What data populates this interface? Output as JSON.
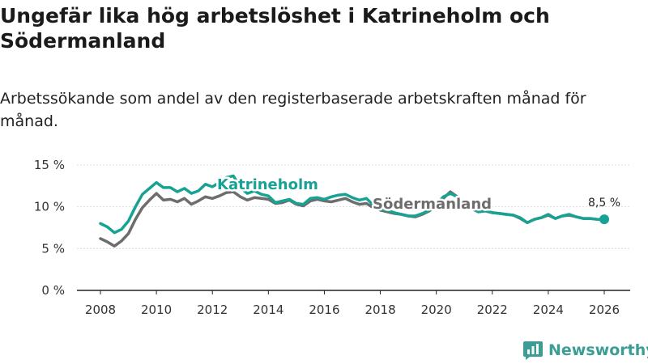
{
  "title": "Ungefär lika hög arbetslöshet i Katrineholm och Södermanland",
  "subtitle": "Arbetssökande som andel av den registerbaserade arbetskraften månad för månad.",
  "brand": "Newsworthy",
  "colors": {
    "katrineholm": "#17a294",
    "sodermanland": "#6d6d6d",
    "grid": "#dcdcdc",
    "axis": "#222222",
    "brand": "#3a9e95"
  },
  "chart_data": {
    "type": "line",
    "xlim": [
      2008,
      2026
    ],
    "ylim": [
      0,
      15
    ],
    "x_ticks": [
      2008,
      2010,
      2012,
      2014,
      2016,
      2018,
      2020,
      2022,
      2024,
      2026
    ],
    "x_tick_labels": [
      "2008",
      "2010",
      "2012",
      "2014",
      "2016",
      "2018",
      "2020",
      "2022",
      "2024",
      "2026"
    ],
    "y_ticks": [
      0,
      5,
      10,
      15
    ],
    "y_tick_labels": [
      "0 %",
      "5 %",
      "10 %",
      "15 %"
    ],
    "end_value_label": "8,5 %",
    "series": [
      {
        "name": "Katrineholm",
        "key": "katrineholm",
        "x": [
          2008.0,
          2008.25,
          2008.5,
          2008.75,
          2009.0,
          2009.25,
          2009.5,
          2009.75,
          2010.0,
          2010.25,
          2010.5,
          2010.75,
          2011.0,
          2011.25,
          2011.5,
          2011.75,
          2012.0,
          2012.25,
          2012.5,
          2012.75,
          2013.0,
          2013.25,
          2013.5,
          2013.75,
          2014.0,
          2014.25,
          2014.5,
          2014.75,
          2015.0,
          2015.25,
          2015.5,
          2015.75,
          2016.0,
          2016.25,
          2016.5,
          2016.75,
          2017.0,
          2017.25,
          2017.5,
          2017.75,
          2018.0,
          2018.25,
          2018.5,
          2018.75,
          2019.0,
          2019.25,
          2019.5,
          2019.75,
          2020.0,
          2020.25,
          2020.5,
          2020.75,
          2021.0,
          2021.25,
          2021.5,
          2021.75,
          2022.0,
          2022.25,
          2022.5,
          2022.75,
          2023.0,
          2023.25,
          2023.5,
          2023.75,
          2024.0,
          2024.25,
          2024.5,
          2024.75,
          2025.0,
          2025.25,
          2025.5,
          2025.75,
          2026.0
        ],
        "values": [
          8.0,
          7.6,
          6.9,
          7.3,
          8.3,
          10.0,
          11.5,
          12.2,
          12.9,
          12.3,
          12.3,
          11.8,
          12.2,
          11.6,
          11.9,
          12.7,
          12.4,
          12.9,
          13.5,
          13.7,
          12.3,
          11.6,
          11.9,
          11.5,
          11.3,
          10.5,
          10.7,
          10.9,
          10.4,
          10.3,
          11.0,
          11.1,
          10.9,
          11.2,
          11.4,
          11.5,
          11.1,
          10.8,
          11.0,
          10.2,
          9.7,
          9.6,
          9.3,
          9.1,
          8.9,
          8.9,
          9.2,
          9.6,
          10.3,
          11.2,
          11.6,
          11.2,
          10.5,
          9.9,
          9.4,
          9.5,
          9.3,
          9.2,
          9.1,
          9.0,
          8.7,
          8.1,
          8.5,
          8.7,
          9.1,
          8.6,
          8.9,
          9.1,
          8.8,
          8.6,
          8.6,
          8.5,
          8.5
        ]
      },
      {
        "name": "Södermanland",
        "key": "sodermanland",
        "x": [
          2008.0,
          2008.25,
          2008.5,
          2008.75,
          2009.0,
          2009.25,
          2009.5,
          2009.75,
          2010.0,
          2010.25,
          2010.5,
          2010.75,
          2011.0,
          2011.25,
          2011.5,
          2011.75,
          2012.0,
          2012.25,
          2012.5,
          2012.75,
          2013.0,
          2013.25,
          2013.5,
          2013.75,
          2014.0,
          2014.25,
          2014.5,
          2014.75,
          2015.0,
          2015.25,
          2015.5,
          2015.75,
          2016.0,
          2016.25,
          2016.5,
          2016.75,
          2017.0,
          2017.25,
          2017.5,
          2017.75,
          2018.0,
          2018.25,
          2018.5,
          2018.75,
          2019.0,
          2019.25,
          2019.5,
          2019.75,
          2020.0,
          2020.25,
          2020.5,
          2020.75,
          2021.0,
          2021.25,
          2021.5,
          2021.75,
          2022.0,
          2022.25,
          2022.5,
          2022.75,
          2023.0,
          2023.25,
          2023.5,
          2023.75,
          2024.0,
          2024.25,
          2024.5,
          2024.75,
          2025.0,
          2025.25,
          2025.5,
          2025.75,
          2026.0
        ],
        "values": [
          6.2,
          5.8,
          5.3,
          5.9,
          6.8,
          8.5,
          9.9,
          10.8,
          11.6,
          10.8,
          10.9,
          10.6,
          11.0,
          10.3,
          10.7,
          11.2,
          11.0,
          11.3,
          11.7,
          11.8,
          11.2,
          10.8,
          11.1,
          11.0,
          10.9,
          10.4,
          10.5,
          10.8,
          10.3,
          10.1,
          10.7,
          10.9,
          10.7,
          10.6,
          10.8,
          11.0,
          10.6,
          10.3,
          10.4,
          9.9,
          9.6,
          9.4,
          9.2,
          9.1,
          8.9,
          8.8,
          9.1,
          9.5,
          10.2,
          11.0,
          11.8,
          11.2,
          10.4,
          9.8,
          9.4,
          9.5,
          9.3,
          9.2,
          9.1,
          9.0,
          8.6,
          8.1,
          8.5,
          8.7,
          9.0,
          8.6,
          8.9,
          9.0,
          8.8,
          8.6,
          8.6,
          8.5,
          8.5
        ]
      }
    ]
  }
}
